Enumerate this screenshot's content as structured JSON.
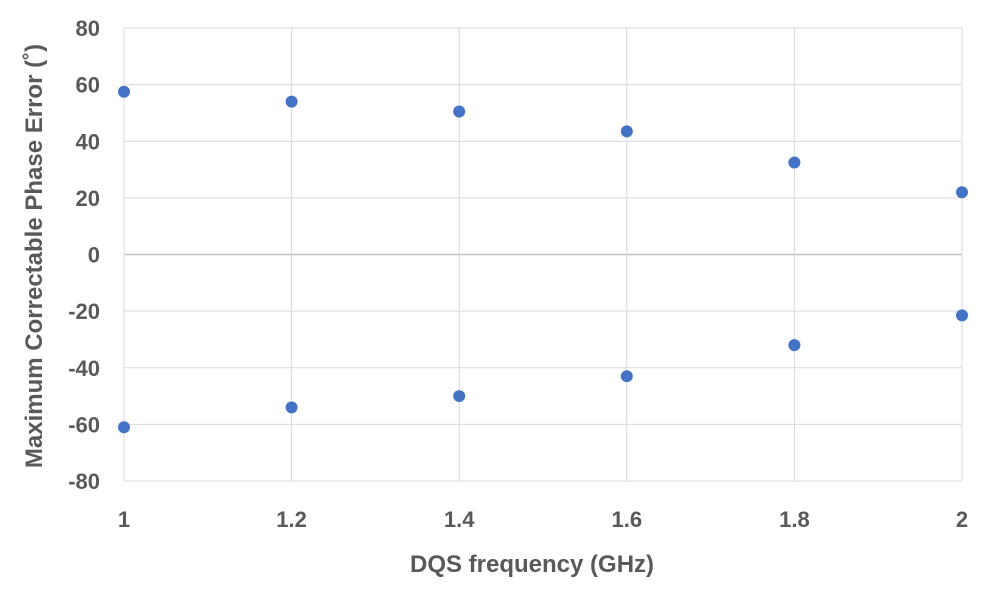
{
  "chart_data": {
    "type": "scatter",
    "title": "",
    "xlabel": "DQS frequency (GHz)",
    "ylabel": "Maximum Correctable Phase Error (˚)",
    "xlim": [
      1,
      2
    ],
    "ylim": [
      -80,
      80
    ],
    "x_ticks": [
      1,
      1.2,
      1.4,
      1.6,
      1.8,
      2
    ],
    "x_tick_labels": [
      "1",
      "1.2",
      "1.4",
      "1.6",
      "1.8",
      "2"
    ],
    "y_ticks": [
      80,
      60,
      40,
      20,
      0,
      -20,
      -40,
      -60,
      -80
    ],
    "y_tick_labels": [
      "80",
      "60",
      "40",
      "20",
      "0",
      "-20",
      "-40",
      "-60",
      "-80"
    ],
    "grid": true,
    "legend": "none",
    "marker_color": "#4472C4",
    "series": [
      {
        "x": [
          1,
          1.2,
          1.4,
          1.6,
          1.8,
          2
        ],
        "y": [
          57.5,
          54,
          50.5,
          43.5,
          32.5,
          22
        ]
      },
      {
        "x": [
          1,
          1.2,
          1.4,
          1.6,
          1.8,
          2
        ],
        "y": [
          -61,
          -54,
          -50,
          -43,
          -32,
          -21.5
        ]
      }
    ]
  }
}
